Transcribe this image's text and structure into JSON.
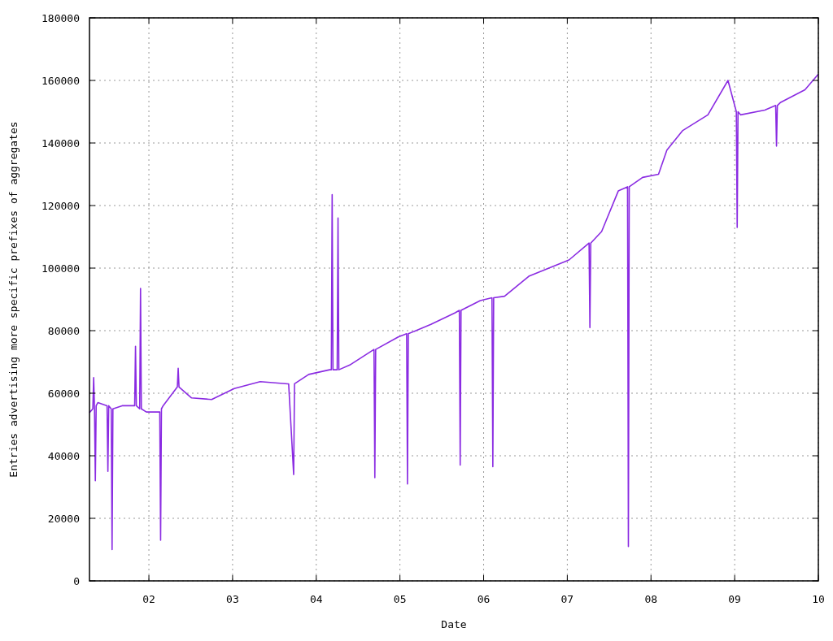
{
  "chart_data": {
    "type": "line",
    "xlabel": "Date",
    "ylabel": "Entries advertising more specific prefixes of aggregates",
    "x": [
      2001.29,
      2001.33,
      2001.34,
      2001.35,
      2001.36,
      2001.37,
      2001.39,
      2001.5,
      2001.51,
      2001.52,
      2001.55,
      2001.56,
      2001.57,
      2001.68,
      2001.83,
      2001.84,
      2001.85,
      2001.89,
      2001.9,
      2001.91,
      2001.97,
      2002.13,
      2002.14,
      2002.15,
      2002.17,
      2002.34,
      2002.35,
      2002.36,
      2002.51,
      2002.75,
      2003.02,
      2003.33,
      2003.66,
      2003.67,
      2003.73,
      2003.74,
      2003.91,
      2004.16,
      2004.18,
      2004.19,
      2004.2,
      2004.25,
      2004.26,
      2004.27,
      2004.4,
      2004.69,
      2004.7,
      2004.71,
      2004.98,
      2005.08,
      2005.09,
      2005.1,
      2005.37,
      2005.66,
      2005.71,
      2005.72,
      2005.73,
      2005.96,
      2006.1,
      2006.11,
      2006.12,
      2006.25,
      2006.54,
      2007.02,
      2007.26,
      2007.27,
      2007.28,
      2007.41,
      2007.61,
      2007.72,
      2007.73,
      2007.74,
      2007.9,
      2008.09,
      2008.19,
      2008.38,
      2008.68,
      2008.92,
      2009.02,
      2009.03,
      2009.04,
      2009.07,
      2009.36,
      2009.49,
      2009.5,
      2009.51,
      2009.55,
      2009.84,
      2010.0
    ],
    "series": [
      {
        "color": "#8a2be2",
        "values": [
          53800,
          55000,
          65000,
          55000,
          32000,
          56000,
          57000,
          56000,
          35000,
          56000,
          55000,
          10000,
          55000,
          56000,
          56000,
          75000,
          56000,
          55000,
          93500,
          55000,
          54000,
          54000,
          13000,
          55000,
          56000,
          62000,
          68000,
          62000,
          58500,
          58000,
          61500,
          63700,
          63000,
          63000,
          34000,
          63000,
          66000,
          67500,
          67500,
          123500,
          67500,
          67500,
          116000,
          67500,
          69000,
          74000,
          33000,
          74000,
          78000,
          79000,
          31000,
          79000,
          82000,
          85700,
          86500,
          37000,
          86500,
          89600,
          90500,
          36500,
          90500,
          91000,
          97400,
          102600,
          108000,
          81000,
          108000,
          111700,
          124700,
          126000,
          11000,
          126000,
          129000,
          130000,
          137700,
          144000,
          149000,
          160000,
          150000,
          113000,
          150000,
          149000,
          150500,
          152000,
          139000,
          152000,
          153000,
          157000,
          162000
        ]
      }
    ],
    "xlim": [
      2001.29,
      2010
    ],
    "xticks": [
      {
        "value": 2002,
        "label": "02"
      },
      {
        "value": 2003,
        "label": "03"
      },
      {
        "value": 2004,
        "label": "04"
      },
      {
        "value": 2005,
        "label": "05"
      },
      {
        "value": 2006,
        "label": "06"
      },
      {
        "value": 2007,
        "label": "07"
      },
      {
        "value": 2008,
        "label": "08"
      },
      {
        "value": 2009,
        "label": "09"
      },
      {
        "value": 2010,
        "label": "10"
      }
    ],
    "ylim": [
      0,
      180000
    ],
    "yticks": [
      0,
      20000,
      40000,
      60000,
      80000,
      100000,
      120000,
      140000,
      160000,
      180000
    ],
    "grid": true
  }
}
